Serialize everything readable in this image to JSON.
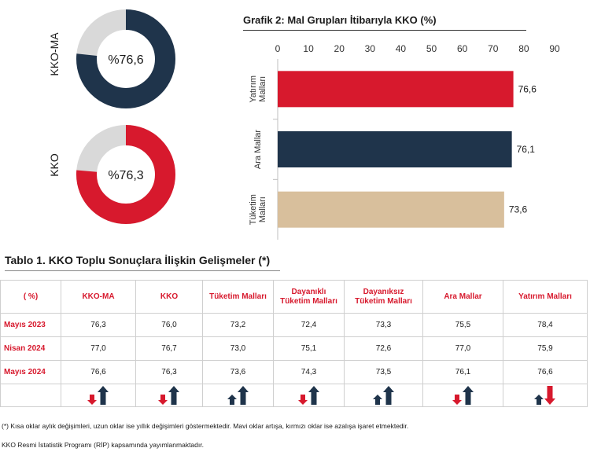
{
  "chart_data": [
    {
      "type": "pie",
      "subtype": "donut",
      "label": "KKO-MA",
      "center_text": "%76,6",
      "value": 76.6,
      "colors": {
        "filled": "#1f344b",
        "remainder": "#d9d9d9"
      }
    },
    {
      "type": "pie",
      "subtype": "donut",
      "label": "KKO",
      "center_text": "%76,3",
      "value": 76.3,
      "colors": {
        "filled": "#d7192d",
        "remainder": "#d9d9d9"
      }
    },
    {
      "type": "bar",
      "orientation": "horizontal",
      "title": "Grafik 2: Mal Grupları İtibarıyla KKO (%)",
      "categories": [
        {
          "lines": [
            "Yatırım",
            "Malları"
          ],
          "color": "#d7192d"
        },
        {
          "lines": [
            "Ara Mallar"
          ],
          "color": "#1f344b"
        },
        {
          "lines": [
            "Tüketim",
            "Malları"
          ],
          "color": "#d8bf9c"
        }
      ],
      "values": [
        76.6,
        76.1,
        73.6
      ],
      "value_labels": [
        "76,6",
        "76,1",
        "73,6"
      ],
      "xlim": [
        0,
        90
      ],
      "ticks": [
        0,
        10,
        20,
        30,
        40,
        50,
        60,
        70,
        80,
        90
      ],
      "tick_labels": [
        "0",
        "10",
        "20",
        "30",
        "40",
        "50",
        "60",
        "70",
        "80",
        "90"
      ],
      "axis_position": "top",
      "grid": false
    }
  ],
  "table": {
    "title": "Tablo 1. KKO Toplu Sonuçlara İlişkin Gelişmeler (*)",
    "headers": [
      "( %)",
      "KKO-MA",
      "KKO",
      "Tüketim Malları",
      "Dayanıklı Tüketim Malları",
      "Dayanıksız Tüketim Malları",
      "Ara Mallar",
      "Yatırım Malları"
    ],
    "rows": [
      {
        "label": "Mayıs 2023",
        "values": [
          "76,3",
          "76,0",
          "73,2",
          "72,4",
          "73,3",
          "75,5",
          "78,4"
        ]
      },
      {
        "label": "Nisan 2024",
        "values": [
          "77,0",
          "76,7",
          "73,0",
          "75,1",
          "72,6",
          "77,0",
          "75,9"
        ]
      },
      {
        "label": "Mayıs 2024",
        "values": [
          "76,6",
          "76,3",
          "73,6",
          "74,3",
          "73,5",
          "76,1",
          "76,6"
        ]
      }
    ],
    "arrows": [
      {
        "monthly": "down",
        "yearly": "up"
      },
      {
        "monthly": "down",
        "yearly": "up"
      },
      {
        "monthly": "up",
        "yearly": "up"
      },
      {
        "monthly": "down",
        "yearly": "up"
      },
      {
        "monthly": "up",
        "yearly": "up"
      },
      {
        "monthly": "down",
        "yearly": "up"
      },
      {
        "monthly": "up",
        "yearly": "down"
      }
    ],
    "arrow_colors": {
      "up": "#1f344b",
      "down": "#d7192d"
    }
  },
  "notes": {
    "arrows": "(*) Kısa oklar aylık değişimleri, uzun oklar ise yıllık değişimleri göstermektedir. Mavi oklar artışa, kırmızı oklar ise azalışa işaret etmektedir.",
    "program": "KKO Resmi İstatistik Programı (RİP) kapsamında yayımlanmaktadır."
  }
}
